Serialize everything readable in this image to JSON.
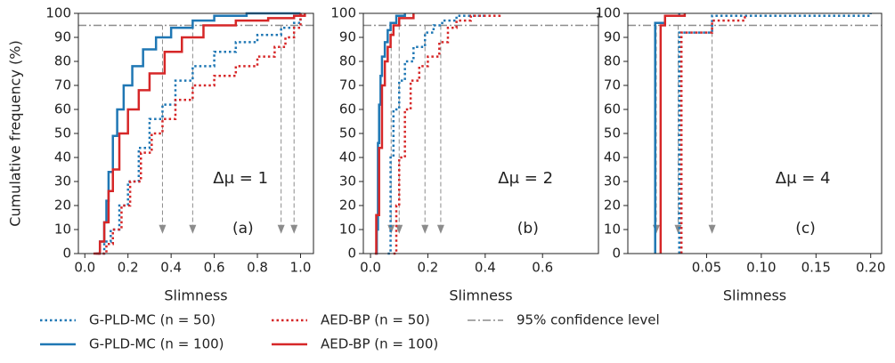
{
  "y_label": "Cumulative frequency (%)",
  "chart_data": [
    {
      "type": "step",
      "x_label": "Slimness",
      "annotation": "Δμ = 1",
      "panel_label": "(a)",
      "xlim": [
        -0.03,
        1.06
      ],
      "ylim": [
        0,
        100
      ],
      "xticks": [
        {
          "value": 0,
          "label": "0.0"
        },
        {
          "value": 0.2,
          "label": "0.2"
        },
        {
          "value": 0.4,
          "label": "0.4"
        },
        {
          "value": 0.6,
          "label": "0.6"
        },
        {
          "value": 0.8,
          "label": "0.8"
        },
        {
          "value": 1,
          "label": "1.0"
        }
      ],
      "yticks": [
        0,
        10,
        20,
        30,
        40,
        50,
        60,
        70,
        80,
        90,
        100
      ],
      "reference_line": {
        "value": 95,
        "label": "95% confidence level",
        "color": "#8c8c8c"
      },
      "arrows_x": [
        0.36,
        0.5,
        0.91,
        0.97
      ],
      "series": [
        {
          "name": "G-PLD-MC (n = 50)",
          "color": "#1f77b4",
          "style": "dotted",
          "x": [
            0.06,
            0.09,
            0.12,
            0.16,
            0.2,
            0.25,
            0.3,
            0.36,
            0.42,
            0.5,
            0.6,
            0.7,
            0.8,
            0.91,
            0.97,
            1.0
          ],
          "values": [
            0,
            5,
            10,
            20,
            30,
            44,
            56,
            62,
            72,
            78,
            84,
            88,
            91,
            94,
            96,
            100
          ]
        },
        {
          "name": "G-PLD-MC (n = 100)",
          "color": "#1f77b4",
          "style": "solid",
          "x": [
            0.05,
            0.07,
            0.09,
            0.1,
            0.11,
            0.13,
            0.15,
            0.18,
            0.22,
            0.27,
            0.33,
            0.4,
            0.5,
            0.6,
            0.75,
            1.0
          ],
          "values": [
            0,
            5,
            13,
            22,
            34,
            49,
            60,
            70,
            78,
            85,
            90,
            94,
            97,
            99,
            100,
            100
          ]
        },
        {
          "name": "AED-BP (n = 50)",
          "color": "#d62728",
          "style": "dotted",
          "x": [
            0.06,
            0.1,
            0.13,
            0.17,
            0.21,
            0.26,
            0.31,
            0.36,
            0.42,
            0.5,
            0.6,
            0.7,
            0.8,
            0.88,
            0.93,
            0.97,
            1.0
          ],
          "values": [
            0,
            4,
            10,
            20,
            30,
            42,
            50,
            56,
            64,
            70,
            74,
            78,
            82,
            86,
            90,
            94,
            100
          ]
        },
        {
          "name": "AED-BP (n = 100)",
          "color": "#d62728",
          "style": "solid",
          "x": [
            0.04,
            0.07,
            0.09,
            0.11,
            0.13,
            0.16,
            0.2,
            0.25,
            0.3,
            0.37,
            0.45,
            0.55,
            0.7,
            0.85,
            0.97,
            1.02
          ],
          "values": [
            0,
            5,
            13,
            26,
            35,
            50,
            60,
            68,
            75,
            84,
            90,
            95,
            97,
            98,
            99,
            100
          ]
        }
      ]
    },
    {
      "type": "step",
      "x_label": "Slimness",
      "annotation": "Δμ = 2",
      "panel_label": "(b)",
      "xlim": [
        -0.025,
        0.795
      ],
      "ylim": [
        0,
        100
      ],
      "xticks": [
        {
          "value": 0,
          "label": "0.0"
        },
        {
          "value": 0.2,
          "label": "0.2"
        },
        {
          "value": 0.4,
          "label": "0.4"
        },
        {
          "value": 0.6,
          "label": "0.6"
        }
      ],
      "yticks": [
        0,
        10,
        20,
        30,
        40,
        50,
        60,
        70,
        80,
        90,
        100
      ],
      "reference_line": {
        "value": 95
      },
      "arrows_x": [
        0.072,
        0.1,
        0.19,
        0.245
      ],
      "series": [
        {
          "color": "#1f77b4",
          "style": "dotted",
          "x": [
            0.06,
            0.07,
            0.08,
            0.1,
            0.12,
            0.15,
            0.19,
            0.22,
            0.25,
            0.3,
            0.4
          ],
          "values": [
            0,
            40,
            60,
            72,
            80,
            86,
            92,
            95,
            97,
            99,
            100
          ]
        },
        {
          "color": "#1f77b4",
          "style": "solid",
          "x": [
            0.018,
            0.022,
            0.026,
            0.03,
            0.035,
            0.04,
            0.05,
            0.06,
            0.07,
            0.09,
            0.12
          ],
          "values": [
            0,
            10,
            46,
            62,
            74,
            82,
            88,
            93,
            96,
            99,
            100
          ]
        },
        {
          "color": "#d62728",
          "style": "dotted",
          "x": [
            0.08,
            0.09,
            0.1,
            0.12,
            0.14,
            0.17,
            0.2,
            0.24,
            0.27,
            0.3,
            0.35,
            0.45
          ],
          "values": [
            0,
            20,
            40,
            60,
            72,
            78,
            82,
            88,
            94,
            97,
            99,
            100
          ]
        },
        {
          "color": "#d62728",
          "style": "solid",
          "x": [
            0.015,
            0.02,
            0.03,
            0.04,
            0.05,
            0.06,
            0.07,
            0.08,
            0.1,
            0.15
          ],
          "values": [
            0,
            16,
            44,
            70,
            80,
            86,
            91,
            95,
            98,
            100
          ]
        }
      ]
    },
    {
      "type": "step",
      "x_label": "Slimness",
      "annotation": "Δμ = 4",
      "panel_label": "(c)",
      "xlim": [
        -0.022,
        0.21
      ],
      "ylim": [
        0,
        100
      ],
      "xticks": [
        {
          "value": 0.05,
          "label": "0.05"
        },
        {
          "value": 0.1,
          "label": "0.10"
        },
        {
          "value": 0.15,
          "label": "0.15"
        },
        {
          "value": 0.2,
          "label": "0.20"
        }
      ],
      "yticks": [
        0,
        10,
        20,
        30,
        40,
        50,
        60,
        70,
        80,
        90,
        100
      ],
      "reference_line": {
        "value": 95
      },
      "arrows_x": [
        0.004,
        0.024,
        0.055
      ],
      "series": [
        {
          "color": "#1f77b4",
          "style": "dotted",
          "x": [
            0.025,
            0.025,
            0.055,
            0.2
          ],
          "values": [
            0,
            92,
            99,
            100
          ]
        },
        {
          "color": "#1f77b4",
          "style": "solid",
          "x": [
            0.003,
            0.003,
            0.012,
            0.025
          ],
          "values": [
            0,
            96,
            99,
            100
          ]
        },
        {
          "color": "#d62728",
          "style": "dotted",
          "x": [
            0.027,
            0.027,
            0.055,
            0.085
          ],
          "values": [
            0,
            92,
            97,
            100
          ]
        },
        {
          "color": "#d62728",
          "style": "solid",
          "x": [
            0.008,
            0.008,
            0.012,
            0.03
          ],
          "values": [
            0,
            95,
            99,
            100
          ]
        }
      ]
    }
  ]
}
